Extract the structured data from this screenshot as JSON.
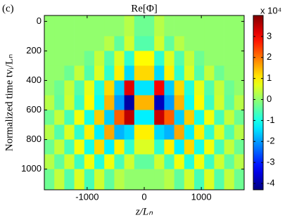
{
  "chart_data": {
    "type": "heatmap",
    "panel_label": "(c)",
    "title": "Re[Φ]",
    "xlabel": "z/Lₙ",
    "ylabel": "Normalized time tvᵢ/Lₙ",
    "colorbar_label": "x 10⁴",
    "colormap": "jet",
    "x_edges": [
      -1750,
      -1575,
      -1400,
      -1225,
      -1050,
      -875,
      -700,
      -525,
      -350,
      -175,
      0,
      175,
      350,
      525,
      700,
      875,
      1050,
      1225,
      1400,
      1575,
      1750
    ],
    "y_edges": [
      -40,
      100,
      200,
      300,
      400,
      500,
      600,
      700,
      800,
      900,
      1000,
      1140
    ],
    "z": [
      [
        0,
        0,
        0,
        0,
        0,
        0,
        0,
        0,
        0.3,
        -0.3,
        -0.3,
        0.3,
        0,
        0,
        0,
        0,
        0,
        0,
        0,
        0
      ],
      [
        0,
        0,
        0,
        0,
        0,
        0,
        0.3,
        -0.4,
        0.5,
        -0.5,
        -0.5,
        0.5,
        -0.4,
        0.3,
        0,
        0,
        0,
        0,
        0,
        0
      ],
      [
        0,
        0,
        0,
        0,
        -0.3,
        0.4,
        -0.5,
        0.6,
        -0.8,
        0.9,
        0.9,
        -0.8,
        0.6,
        -0.5,
        0.4,
        -0.3,
        0,
        0,
        0,
        0
      ],
      [
        0,
        0,
        -0.3,
        0.4,
        -0.5,
        0.6,
        -0.8,
        1.0,
        -1.5,
        1.2,
        1.2,
        -1.5,
        1.0,
        -0.8,
        0.6,
        -0.5,
        0.4,
        -0.3,
        0,
        0
      ],
      [
        0,
        -0.3,
        0.4,
        -0.5,
        0.7,
        -0.9,
        1.2,
        -1.6,
        3.2,
        -1.4,
        -1.4,
        3.0,
        -1.6,
        1.2,
        -0.9,
        0.7,
        -0.5,
        0.4,
        -0.3,
        0
      ],
      [
        0.3,
        -0.4,
        0.5,
        -0.7,
        0.9,
        -1.1,
        1.5,
        -2.0,
        -4.0,
        1.5,
        1.5,
        -3.8,
        -2.0,
        1.5,
        -1.1,
        0.9,
        -0.7,
        0.5,
        -0.4,
        0.3
      ],
      [
        -0.3,
        0.4,
        -0.6,
        0.8,
        -1.0,
        1.3,
        -1.6,
        2.2,
        3.5,
        -1.3,
        -1.3,
        3.4,
        2.2,
        -1.6,
        1.3,
        -1.0,
        0.8,
        -0.6,
        0.4,
        -0.3
      ],
      [
        0.3,
        -0.5,
        0.6,
        -0.8,
        1.0,
        -1.3,
        1.6,
        -1.8,
        -1.5,
        1.0,
        1.0,
        -1.5,
        -1.8,
        1.6,
        -1.3,
        1.0,
        -0.8,
        0.6,
        -0.5,
        0.3
      ],
      [
        -0.3,
        0.4,
        -0.6,
        0.8,
        -1.0,
        1.2,
        -1.3,
        1.0,
        -0.8,
        0.6,
        0.6,
        -0.8,
        1.0,
        -1.3,
        1.2,
        -1.0,
        0.8,
        -0.6,
        0.4,
        -0.3
      ],
      [
        0.3,
        -0.4,
        0.5,
        -0.7,
        0.8,
        -0.9,
        0.8,
        -0.6,
        0.5,
        -0.4,
        -0.4,
        0.5,
        -0.6,
        0.8,
        -0.9,
        0.8,
        -0.7,
        0.5,
        -0.4,
        0.3
      ],
      [
        -0.3,
        0.4,
        -0.5,
        0.6,
        -0.6,
        0.5,
        -0.4,
        0.3,
        0,
        0,
        0,
        0,
        0.3,
        -0.4,
        0.5,
        -0.6,
        0.6,
        -0.5,
        0.4,
        -0.3
      ]
    ],
    "xlim": [
      -1750,
      1750
    ],
    "xticks": [
      -1000,
      0,
      1000
    ],
    "ylim": [
      -40,
      1140
    ],
    "yticks": [
      0,
      200,
      400,
      600,
      800,
      1000
    ],
    "y_reversed": true,
    "clim": [
      -4.3,
      4.0
    ],
    "cticks": [
      -4,
      -3,
      -2,
      -1,
      0,
      1,
      2,
      3
    ]
  }
}
